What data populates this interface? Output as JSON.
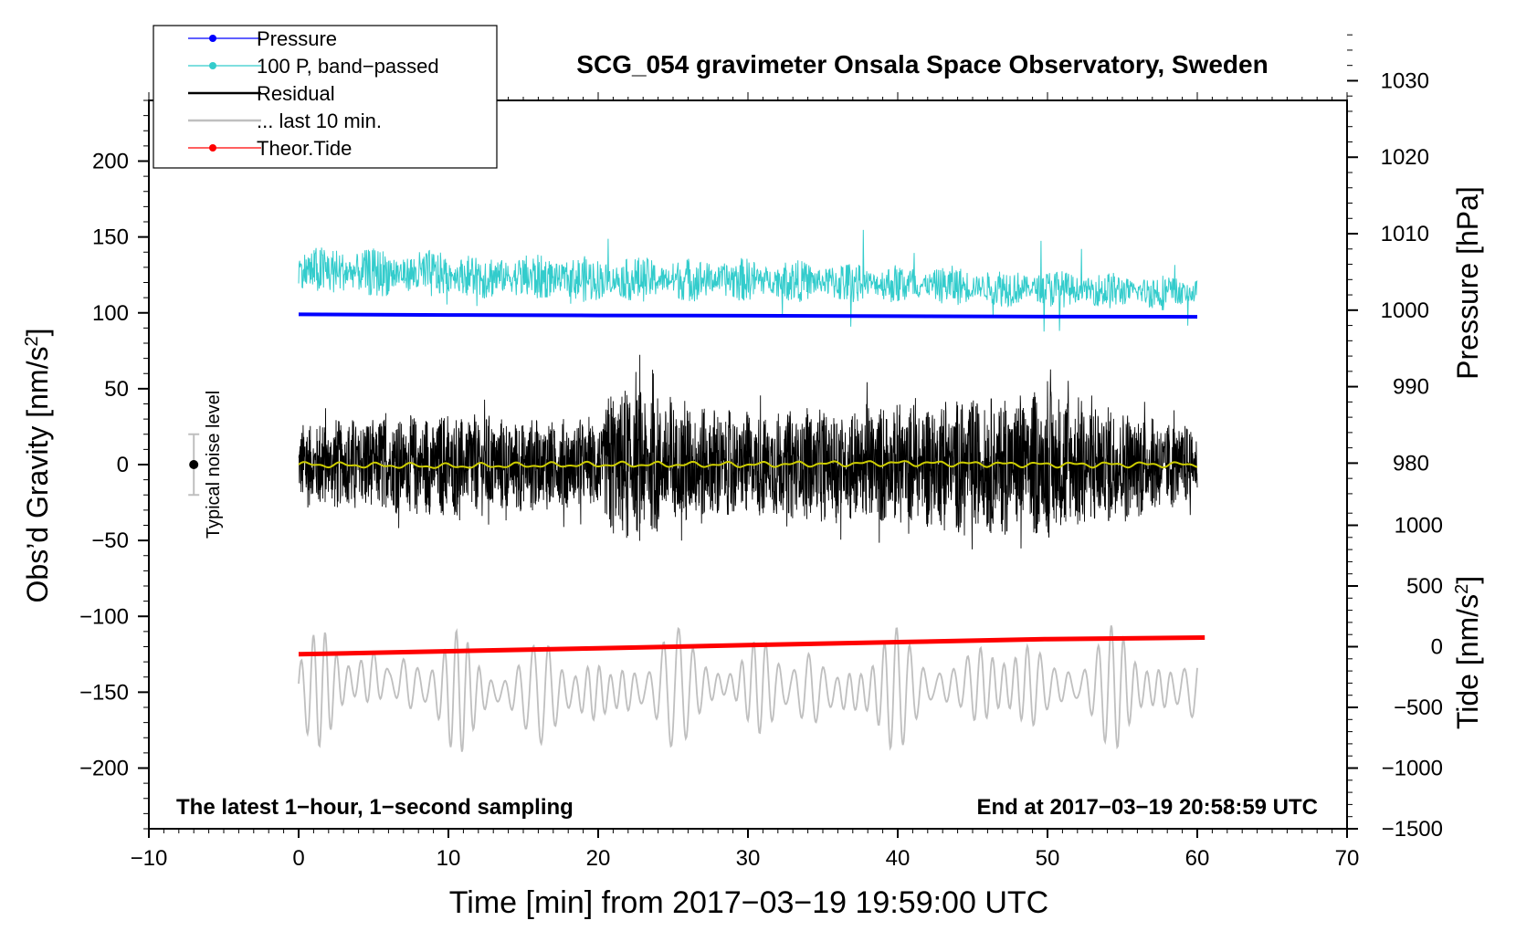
{
  "chart_data": {
    "type": "line",
    "title": "SCG_054 gravimeter Onsala Space Observatory, Sweden",
    "xlabel": "Time [min] from 2017−03−19 19:59:00 UTC",
    "ylabel_base": "Obs’d Gravity [nm/s",
    "ylabel_sup": "2",
    "ylabel_close": "]",
    "y2label": "Pressure [hPa]",
    "y3label_base": "Tide [nm/s",
    "y3label_sup": "2",
    "y3label_close": "]",
    "xlim": [
      -10,
      70
    ],
    "ylim": [
      -240,
      240
    ],
    "xticks": [
      -10,
      0,
      10,
      20,
      30,
      40,
      50,
      60,
      70
    ],
    "xtick_labels": [
      "−10",
      "0",
      "10",
      "20",
      "30",
      "40",
      "50",
      "60",
      "70"
    ],
    "yticks": [
      200,
      150,
      100,
      50,
      0,
      -50,
      -100,
      -150,
      -200
    ],
    "ytick_labels": [
      "200",
      "150",
      "100",
      "50",
      "0",
      "−50",
      "−100",
      "−150",
      "−200"
    ],
    "pressure_axis": {
      "ticks": [
        1030,
        1020,
        1010,
        1000,
        990,
        980
      ],
      "tick_labels": [
        "1030",
        "1020",
        "1010",
        "1000",
        "990",
        "980"
      ],
      "gravity_per_hpa": 5.04,
      "hpa_at_gravity_100": 999.65
    },
    "tide_axis": {
      "ticks": [
        1000,
        500,
        0,
        -500,
        -1000,
        -1500
      ],
      "tick_labels": [
        "1000",
        "500",
        "0",
        "−500",
        "−1000",
        "−1500"
      ],
      "gravity_per_unit": 0.08,
      "gravity_at_zero": -120
    },
    "legend": {
      "position": "top-left",
      "entries": [
        {
          "label": "Pressure",
          "color": "#0000ff",
          "marker": true
        },
        {
          "label": "100 P, band−passed",
          "color": "#33cccc",
          "marker": true
        },
        {
          "label": "Residual",
          "color": "#000000",
          "marker": false
        },
        {
          "label": "... last 10 min.",
          "color": "#bfbfbf",
          "marker": false
        },
        {
          "label": "Theor.Tide",
          "color": "#ff0000",
          "marker": true
        }
      ]
    },
    "noise_indicator": {
      "label": "Typical noise level",
      "x": -7,
      "y": 0,
      "y_err": 20
    },
    "annotations": {
      "left": "The latest 1−hour, 1−second sampling",
      "right": "End at 2017−03−19 20:58:59 UTC"
    },
    "series": [
      {
        "name": "Pressure",
        "color": "#0000ff",
        "x": [
          0,
          10,
          20,
          30,
          40,
          50,
          60
        ],
        "values": [
          99.0,
          98.6,
          98.3,
          98.1,
          97.8,
          97.5,
          97.4
        ]
      },
      {
        "name": "100 P, band-passed (envelope center)",
        "color": "#33cccc",
        "x": [
          0,
          10,
          20,
          30,
          40,
          50,
          60
        ],
        "values": [
          128,
          125,
          122,
          122,
          119,
          116,
          113
        ]
      },
      {
        "name": "Residual (smoothed)",
        "color": "#cccc00",
        "x": [
          0,
          10,
          20,
          30,
          40,
          50,
          60
        ],
        "values": [
          0,
          -1,
          0,
          0,
          1,
          0,
          0
        ]
      },
      {
        "name": "Residual amplitude",
        "color": "#000000",
        "x": [
          0,
          10,
          20,
          21,
          30,
          37,
          51,
          60
        ],
        "values": [
          30,
          35,
          30,
          55,
          35,
          40,
          50,
          25
        ]
      },
      {
        "name": "Theor.Tide",
        "color": "#ff0000",
        "x": [
          0,
          10,
          20,
          30,
          40,
          50,
          60.5
        ],
        "values": [
          -125,
          -123,
          -121,
          -119,
          -117,
          -115,
          -114
        ]
      },
      {
        "name": "... last 10 min.",
        "color": "#bfbfbf",
        "x": [
          0,
          5,
          10,
          20,
          29,
          37,
          45,
          60
        ],
        "values": [
          -150,
          -140,
          -150,
          -150,
          -145,
          -150,
          -145,
          -148
        ]
      }
    ]
  }
}
